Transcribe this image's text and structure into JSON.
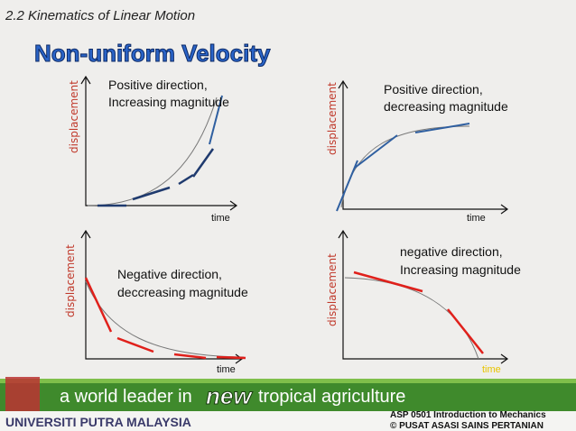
{
  "header": {
    "section": "2.2 Kinematics of Linear Motion",
    "title": "Non-uniform Velocity"
  },
  "panels": [
    {
      "caption": [
        "Positive direction,",
        "Increasing magnitude"
      ],
      "y_label": "displacement",
      "x_label": "time"
    },
    {
      "caption": [
        "Positive direction,",
        "decreasing magnitude"
      ],
      "y_label": "displacement",
      "x_label": "time"
    },
    {
      "caption": [
        "Negative direction,",
        "deccreasing magnitude"
      ],
      "y_label": "displacement",
      "x_label": "time"
    },
    {
      "caption": [
        "negative direction,",
        "Increasing magnitude"
      ],
      "y_label": "displacement",
      "x_label": "time"
    }
  ],
  "footer": {
    "slogan_start": "a world leader in",
    "slogan_new": "new",
    "slogan_end": "tropical agriculture",
    "university": "UNIVERSITI PUTRA MALAYSIA",
    "course": "ASP 0501  Introduction to Mechanics",
    "copyright": "©   PUSAT ASASI SAINS PERTANIAN"
  }
}
